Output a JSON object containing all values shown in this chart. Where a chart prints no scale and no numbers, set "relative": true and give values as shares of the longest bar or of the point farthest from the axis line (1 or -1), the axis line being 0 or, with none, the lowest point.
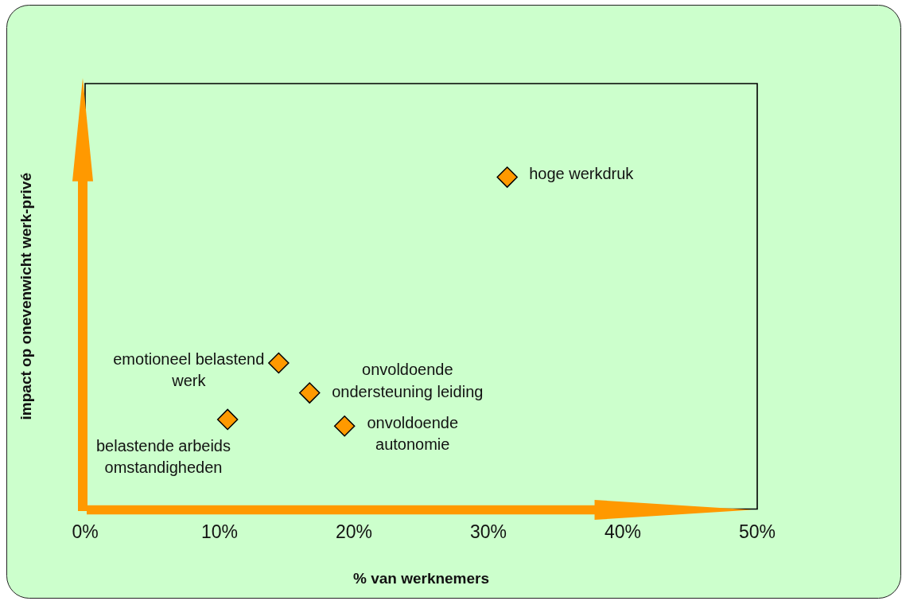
{
  "chart_data": {
    "type": "scatter",
    "xlabel": "% van werknemers",
    "ylabel": "impact op onevenwicht werk-privé",
    "x": [
      31.4,
      14.4,
      16.7,
      10.6,
      19.3
    ],
    "values": [
      1,
      0.44,
      0.35,
      0.27,
      0.25
    ],
    "color": "#ff9900",
    "relative": true,
    "xlim": [
      0,
      50
    ],
    "xticks": [
      {
        "value": 0,
        "label": "0%"
      },
      {
        "value": 10,
        "label": "10%"
      },
      {
        "value": 20,
        "label": "20%"
      },
      {
        "value": 30,
        "label": "30%"
      },
      {
        "value": 40,
        "label": "40%"
      },
      {
        "value": 50,
        "label": "50%"
      }
    ],
    "marker": "diamond",
    "grid": false,
    "annotations": [
      {
        "text": "hoge werkdruk",
        "x": 31.4,
        "y": 1
      },
      {
        "text": "emotioneel belastend\nwerk",
        "x": 14.4,
        "y": 0.44
      },
      {
        "text": "onvoldoende\nondersteuning leiding",
        "x": 16.7,
        "y": 0.35
      },
      {
        "text": "belastende arbeids\nomstandigheden",
        "x": 10.6,
        "y": 0.27
      },
      {
        "text": "onvoldoende\nautonomie",
        "x": 19.3,
        "y": 0.25
      }
    ]
  }
}
